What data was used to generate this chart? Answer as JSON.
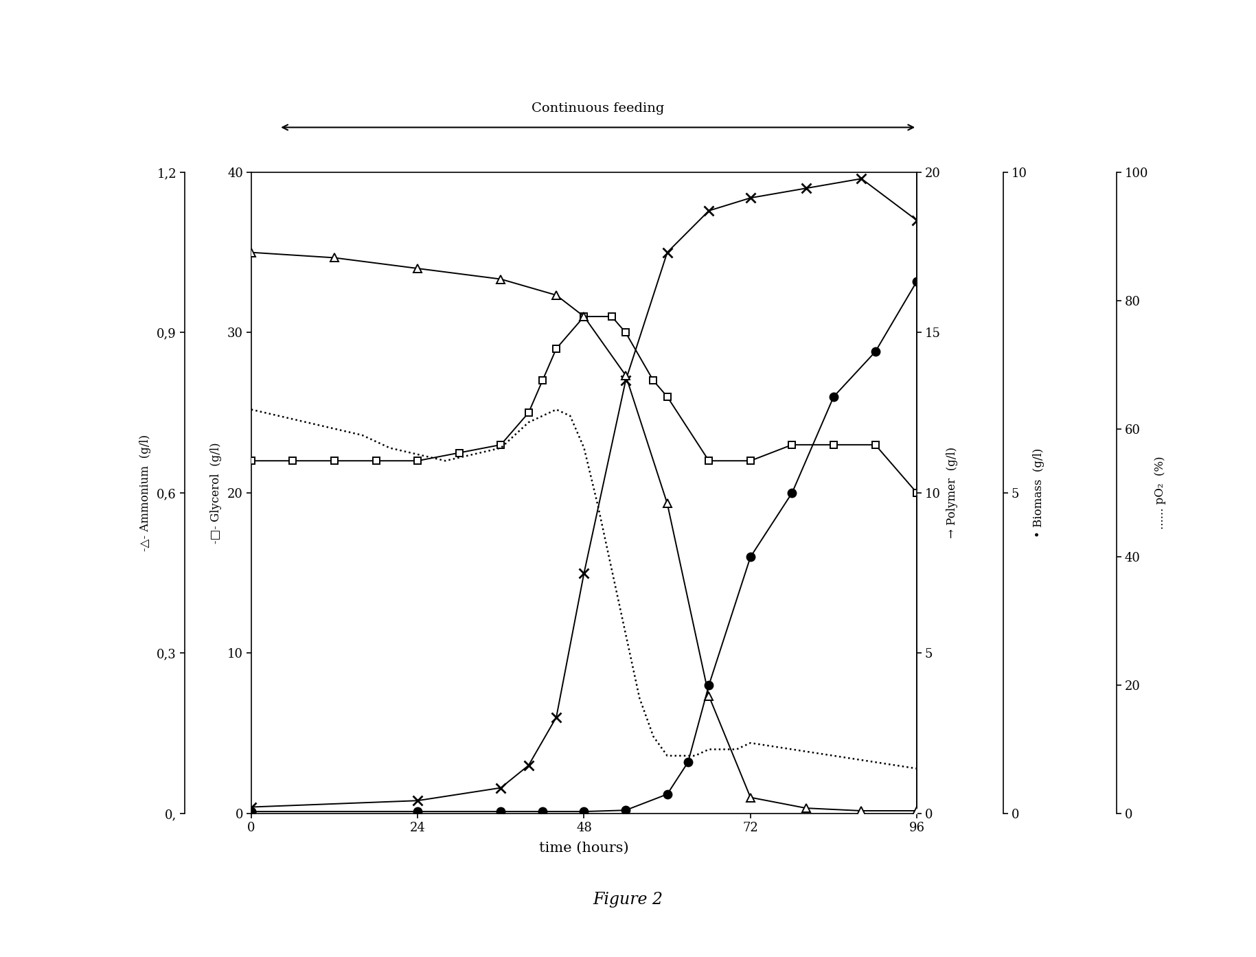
{
  "glycerol_x": [
    0,
    6,
    12,
    18,
    24,
    30,
    36,
    40,
    42,
    44,
    48,
    52,
    54,
    58,
    60,
    66,
    72,
    78,
    84,
    90,
    96
  ],
  "glycerol_y": [
    22,
    22,
    22,
    22,
    22,
    22.5,
    23,
    25,
    27,
    29,
    31,
    31,
    30,
    27,
    26,
    22,
    22,
    23,
    23,
    23,
    20
  ],
  "ammonium_x": [
    0,
    12,
    24,
    36,
    44,
    48,
    54,
    60,
    66,
    72,
    80,
    88,
    96
  ],
  "ammonium_y": [
    1.05,
    1.04,
    1.02,
    1.0,
    0.97,
    0.93,
    0.82,
    0.58,
    0.22,
    0.03,
    0.01,
    0.005,
    0.005
  ],
  "polymer_x": [
    0,
    24,
    36,
    40,
    44,
    48,
    54,
    60,
    66,
    72,
    80,
    88,
    96
  ],
  "polymer_y": [
    0.2,
    0.4,
    0.8,
    1.5,
    3.0,
    7.5,
    13.5,
    17.5,
    18.8,
    19.2,
    19.5,
    19.8,
    18.5
  ],
  "biomass_x": [
    0,
    24,
    36,
    42,
    48,
    54,
    60,
    63,
    66,
    72,
    78,
    84,
    90,
    96
  ],
  "biomass_y": [
    0.03,
    0.03,
    0.03,
    0.03,
    0.03,
    0.05,
    0.3,
    0.8,
    2.0,
    4.0,
    5.0,
    6.5,
    7.2,
    8.3
  ],
  "po2_x": [
    0,
    4,
    8,
    12,
    16,
    20,
    24,
    28,
    32,
    36,
    40,
    42,
    44,
    46,
    48,
    50,
    52,
    54,
    56,
    58,
    60,
    62,
    64,
    66,
    68,
    70,
    72,
    78,
    84,
    90,
    96
  ],
  "po2_y": [
    63,
    62,
    61,
    60,
    59,
    57,
    56,
    55,
    56,
    57,
    61,
    62,
    63,
    62,
    57,
    48,
    38,
    28,
    18,
    12,
    9,
    9,
    9,
    10,
    10,
    10,
    11,
    10,
    9,
    8,
    7
  ],
  "glycerol_ylim": [
    0,
    40
  ],
  "glycerol_yticks": [
    0,
    10,
    20,
    30,
    40
  ],
  "ammonium_ylim": [
    0,
    1.2
  ],
  "ammonium_yticks": [
    0,
    0.3,
    0.6,
    0.9,
    1.2
  ],
  "ammonium_yticklabels": [
    "0,",
    "0,3",
    "0,6",
    "0,9",
    "1,2"
  ],
  "polymer_ylim": [
    0,
    20
  ],
  "polymer_yticks": [
    0,
    5,
    10,
    15,
    20
  ],
  "biomass_ylim": [
    0,
    10
  ],
  "biomass_yticks": [
    0,
    5,
    10
  ],
  "po2_ylim": [
    0,
    100
  ],
  "po2_yticks": [
    0,
    20,
    40,
    60,
    80,
    100
  ],
  "xlim": [
    0,
    96
  ],
  "xticks": [
    0,
    24,
    48,
    72,
    96
  ],
  "xlabel": "time (hours)",
  "figure_caption": "Figure 2",
  "background_color": "#ffffff"
}
